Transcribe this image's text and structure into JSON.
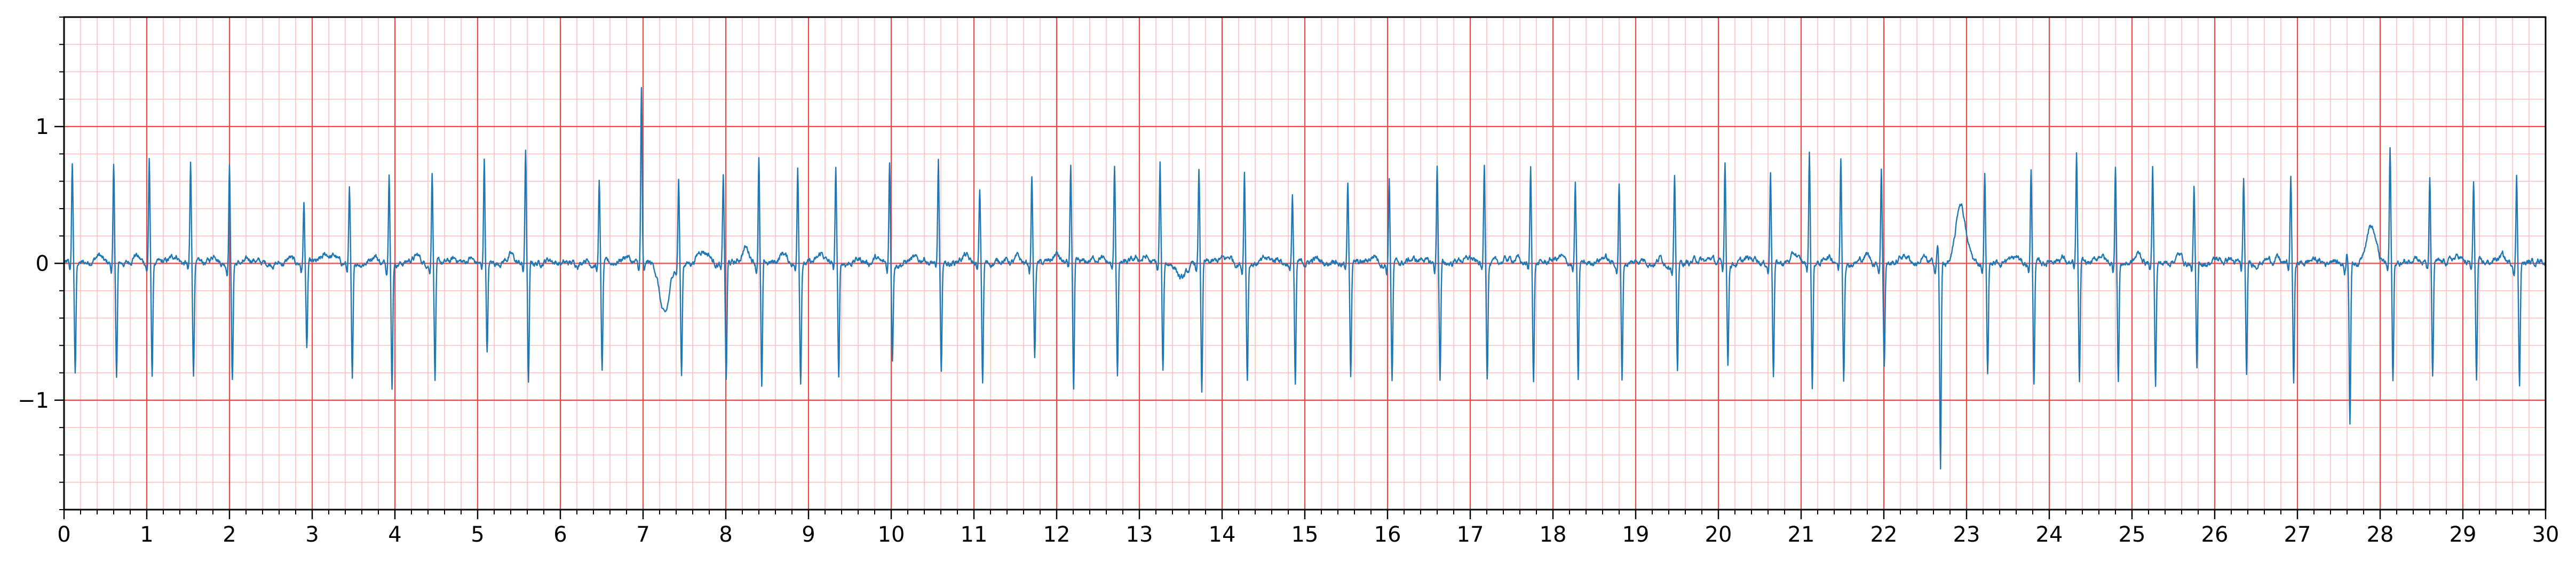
{
  "chart_data": {
    "type": "line",
    "title": "",
    "xlabel": "",
    "ylabel": "",
    "xlim": [
      0,
      30
    ],
    "ylim": [
      -1.8,
      1.8
    ],
    "x_major_ticks": [
      0,
      1,
      2,
      3,
      4,
      5,
      6,
      7,
      8,
      9,
      10,
      11,
      12,
      13,
      14,
      15,
      16,
      17,
      18,
      19,
      20,
      21,
      22,
      23,
      24,
      25,
      26,
      27,
      28,
      29,
      30
    ],
    "x_tick_labels": [
      "0",
      "1",
      "2",
      "3",
      "4",
      "5",
      "6",
      "7",
      "8",
      "9",
      "10",
      "11",
      "12",
      "13",
      "14",
      "15",
      "16",
      "17",
      "18",
      "19",
      "20",
      "21",
      "22",
      "23",
      "24",
      "25",
      "26",
      "27",
      "28",
      "29",
      "30"
    ],
    "y_major_ticks": [
      -1,
      0,
      1
    ],
    "y_tick_labels": [
      "−1",
      "0",
      "1"
    ],
    "x_minor_step": 0.2,
    "y_minor_step": 0.2,
    "grid": true,
    "grid_major_color": "#f04848",
    "grid_minor_color": "#ffbcbc",
    "series": [
      {
        "color": "#1f77b4",
        "baseline_noise": 0.03,
        "beats": [
          {
            "t": 0.1,
            "r": 0.72,
            "s": -0.82,
            "tw": 0.03
          },
          {
            "t": 0.6,
            "r": 0.7,
            "s": -0.84,
            "tw": 0.03
          },
          {
            "t": 1.03,
            "r": 0.76,
            "s": -0.82,
            "tw": 0.03
          },
          {
            "t": 1.53,
            "r": 0.72,
            "s": -0.82,
            "tw": 0.03
          },
          {
            "t": 2.0,
            "r": 0.72,
            "s": -0.86,
            "tw": 0.03
          },
          {
            "t": 2.9,
            "r": 0.44,
            "s": -0.64,
            "tw": 0.06
          },
          {
            "t": 3.45,
            "r": 0.54,
            "s": -0.88,
            "tw": 0.03
          },
          {
            "t": 3.93,
            "r": 0.7,
            "s": -0.91,
            "tw": 0.03
          },
          {
            "t": 4.45,
            "r": 0.68,
            "s": -0.84,
            "tw": 0.03
          },
          {
            "t": 5.08,
            "r": 0.76,
            "s": -0.64,
            "tw": 0.03
          },
          {
            "t": 5.58,
            "r": 0.83,
            "s": -0.88,
            "tw": 0.03
          },
          {
            "t": 6.47,
            "r": 0.6,
            "s": -0.8,
            "tw": 0.03
          },
          {
            "t": 6.98,
            "r": 1.28,
            "s": -0.08,
            "tw": -0.42
          },
          {
            "t": 7.43,
            "r": 0.62,
            "s": -0.82,
            "tw": 0.1
          },
          {
            "t": 7.97,
            "r": 0.64,
            "s": -0.86,
            "tw": 0.08
          },
          {
            "t": 8.4,
            "r": 0.77,
            "s": -0.92,
            "tw": 0.04
          },
          {
            "t": 8.87,
            "r": 0.72,
            "s": -0.86,
            "tw": 0.03
          },
          {
            "t": 9.33,
            "r": 0.7,
            "s": -0.84,
            "tw": 0.03
          },
          {
            "t": 9.98,
            "r": 0.74,
            "s": -0.68,
            "tw": 0.03
          },
          {
            "t": 10.57,
            "r": 0.74,
            "s": -0.82,
            "tw": 0.03
          },
          {
            "t": 11.07,
            "r": 0.53,
            "s": -0.88,
            "tw": 0.03
          },
          {
            "t": 11.7,
            "r": 0.64,
            "s": -0.7,
            "tw": 0.03
          },
          {
            "t": 12.17,
            "r": 0.72,
            "s": -0.94,
            "tw": 0.03
          },
          {
            "t": 12.7,
            "r": 0.7,
            "s": -0.8,
            "tw": 0.03
          },
          {
            "t": 13.25,
            "r": 0.72,
            "s": -0.8,
            "tw": -0.14
          },
          {
            "t": 13.72,
            "r": 0.68,
            "s": -0.94,
            "tw": 0.03
          },
          {
            "t": 14.27,
            "r": 0.68,
            "s": -0.84,
            "tw": 0.03
          },
          {
            "t": 14.85,
            "r": 0.5,
            "s": -0.9,
            "tw": 0.03
          },
          {
            "t": 15.52,
            "r": 0.58,
            "s": -0.8,
            "tw": 0.03
          },
          {
            "t": 16.02,
            "r": 0.62,
            "s": -0.86,
            "tw": 0.03
          },
          {
            "t": 16.6,
            "r": 0.72,
            "s": -0.86,
            "tw": 0.03
          },
          {
            "t": 17.17,
            "r": 0.73,
            "s": -0.82,
            "tw": 0.03
          },
          {
            "t": 17.73,
            "r": 0.7,
            "s": -0.86,
            "tw": 0.03
          },
          {
            "t": 18.27,
            "r": 0.58,
            "s": -0.86,
            "tw": 0.03
          },
          {
            "t": 18.8,
            "r": 0.58,
            "s": -0.84,
            "tw": 0.03
          },
          {
            "t": 19.47,
            "r": 0.64,
            "s": -0.8,
            "tw": 0.03
          },
          {
            "t": 20.08,
            "r": 0.76,
            "s": -0.74,
            "tw": 0.03
          },
          {
            "t": 20.63,
            "r": 0.68,
            "s": -0.8,
            "tw": 0.03
          },
          {
            "t": 21.1,
            "r": 0.82,
            "s": -0.9,
            "tw": 0.03
          },
          {
            "t": 21.48,
            "r": 0.76,
            "s": -0.84,
            "tw": 0.03
          },
          {
            "t": 21.97,
            "r": 0.7,
            "s": -0.74,
            "tw": 0.06
          },
          {
            "t": 22.65,
            "r": 0.14,
            "s": -1.5,
            "tw": 0.44
          },
          {
            "t": 23.22,
            "r": 0.66,
            "s": -0.82,
            "tw": 0.03
          },
          {
            "t": 23.78,
            "r": 0.68,
            "s": -0.86,
            "tw": 0.03
          },
          {
            "t": 24.33,
            "r": 0.78,
            "s": -0.88,
            "tw": 0.03
          },
          {
            "t": 24.8,
            "r": 0.72,
            "s": -0.86,
            "tw": 0.03
          },
          {
            "t": 25.25,
            "r": 0.7,
            "s": -0.88,
            "tw": 0.03
          },
          {
            "t": 25.75,
            "r": 0.56,
            "s": -0.8,
            "tw": 0.03
          },
          {
            "t": 26.35,
            "r": 0.62,
            "s": -0.82,
            "tw": 0.03
          },
          {
            "t": 26.92,
            "r": 0.64,
            "s": -0.88,
            "tw": 0.03
          },
          {
            "t": 27.6,
            "r": 0.08,
            "s": -1.14,
            "tw": 0.28
          },
          {
            "t": 28.12,
            "r": 0.84,
            "s": -0.86,
            "tw": 0.03
          },
          {
            "t": 28.6,
            "r": 0.6,
            "s": -0.84,
            "tw": 0.03
          },
          {
            "t": 29.13,
            "r": 0.58,
            "s": -0.86,
            "tw": 0.03
          },
          {
            "t": 29.65,
            "r": 0.64,
            "s": -0.88,
            "tw": 0.03
          }
        ]
      }
    ]
  }
}
